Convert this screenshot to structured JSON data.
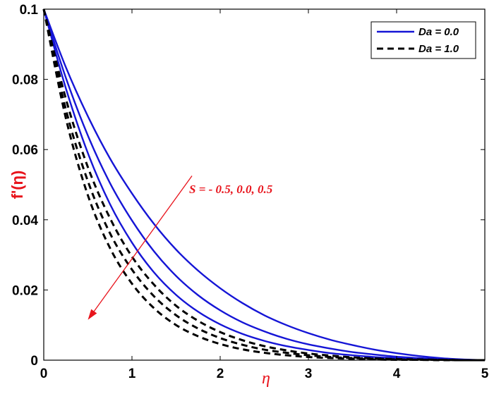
{
  "chart_data": {
    "type": "line",
    "xlabel": "η",
    "ylabel": "f'(η)",
    "xlim": [
      0,
      5
    ],
    "ylim": [
      0,
      0.1
    ],
    "xticks": [
      0,
      1,
      2,
      3,
      4,
      5
    ],
    "yticks": [
      0,
      0.02,
      0.04,
      0.06,
      0.08,
      0.1
    ],
    "xtick_labels": [
      "0",
      "1",
      "2",
      "3",
      "4",
      "5"
    ],
    "ytick_labels": [
      "0",
      "0.02",
      "0.04",
      "0.06",
      "0.08",
      "0.1"
    ],
    "grid": false,
    "legend_position": "top-right",
    "legend": [
      {
        "label": "Da = 0.0",
        "color": "#1515d6",
        "style": "solid"
      },
      {
        "label": "Da = 1.0",
        "color": "#000000",
        "style": "dashed"
      }
    ],
    "annotation": {
      "text": "S = - 0.5, 0.0, 0.5",
      "arrow_from": [
        1.68,
        0.0525
      ],
      "arrow_to": [
        0.5,
        0.0115
      ],
      "color": "#e8141c"
    },
    "x": [
      0,
      0.25,
      0.5,
      0.75,
      1,
      1.25,
      1.5,
      1.75,
      2,
      2.25,
      2.5,
      2.75,
      3,
      3.25,
      3.5,
      3.75,
      4,
      4.25,
      4.5,
      4.75,
      5
    ],
    "series": [
      {
        "group": "Da = 0.0",
        "S": -0.5,
        "color": "#1515d6",
        "style": "solid",
        "values": [
          0.1,
          0.0835,
          0.0695,
          0.0575,
          0.0475,
          0.0388,
          0.0315,
          0.0255,
          0.0205,
          0.0163,
          0.0128,
          0.01,
          0.0077,
          0.0058,
          0.0043,
          0.003,
          0.002,
          0.0012,
          0.0006,
          0.0002,
          0
        ]
      },
      {
        "group": "Da = 0.0",
        "S": 0.0,
        "color": "#1515d6",
        "style": "solid",
        "values": [
          0.1,
          0.0805,
          0.064,
          0.0505,
          0.0398,
          0.031,
          0.024,
          0.0185,
          0.0142,
          0.0108,
          0.0082,
          0.0061,
          0.0045,
          0.0033,
          0.0023,
          0.0016,
          0.001,
          0.0006,
          0.0003,
          0.0001,
          0
        ]
      },
      {
        "group": "Da = 0.0",
        "S": 0.5,
        "color": "#1515d6",
        "style": "solid",
        "values": [
          0.1,
          0.0775,
          0.059,
          0.0445,
          0.0335,
          0.025,
          0.0186,
          0.0138,
          0.0102,
          0.0075,
          0.0055,
          0.004,
          0.0029,
          0.002,
          0.0014,
          0.0009,
          0.0006,
          0.0003,
          0.0002,
          0.0001,
          0
        ]
      },
      {
        "group": "Da = 1.0",
        "S": -0.5,
        "color": "#000000",
        "style": "dashed",
        "values": [
          0.1,
          0.0745,
          0.055,
          0.0405,
          0.0295,
          0.0215,
          0.0155,
          0.0112,
          0.008,
          0.0057,
          0.004,
          0.0028,
          0.0019,
          0.0013,
          0.0008,
          0.0005,
          0.0003,
          0.0002,
          0.0001,
          0,
          0
        ]
      },
      {
        "group": "Da = 1.0",
        "S": 0.0,
        "color": "#000000",
        "style": "dashed",
        "values": [
          0.1,
          0.0715,
          0.051,
          0.0362,
          0.0258,
          0.0182,
          0.0128,
          0.009,
          0.0063,
          0.0044,
          0.003,
          0.0021,
          0.0014,
          0.0009,
          0.0006,
          0.0004,
          0.0002,
          0.0001,
          0.0001,
          0,
          0
        ]
      },
      {
        "group": "Da = 1.0",
        "S": 0.5,
        "color": "#000000",
        "style": "dashed",
        "values": [
          0.1,
          0.069,
          0.047,
          0.032,
          0.0218,
          0.0148,
          0.01,
          0.0068,
          0.0046,
          0.0031,
          0.0021,
          0.0014,
          0.0009,
          0.0006,
          0.0004,
          0.0002,
          0.0001,
          0.0001,
          0,
          0,
          0
        ]
      }
    ]
  }
}
